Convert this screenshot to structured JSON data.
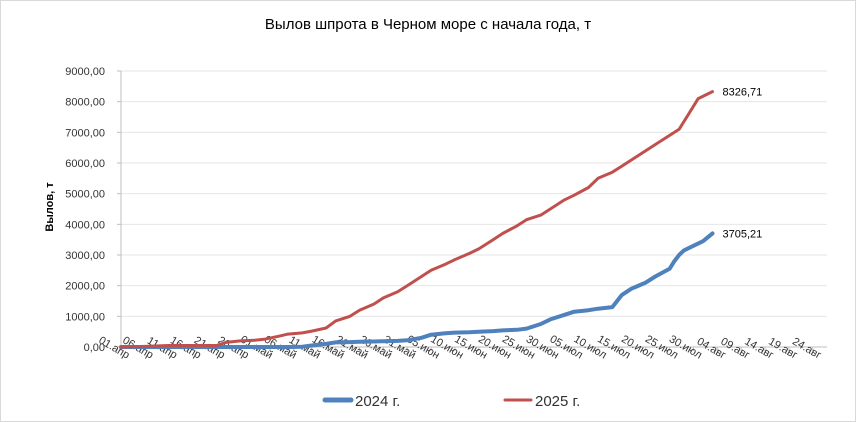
{
  "chart_data": {
    "type": "line",
    "title": "Вылов шпрота в Черном море с начала года, т",
    "xlabel": "",
    "ylabel": "Вылов, т",
    "ylim": [
      0,
      9000
    ],
    "yticks": [
      "0,00",
      "1000,00",
      "2000,00",
      "3000,00",
      "4000,00",
      "5000,00",
      "6000,00",
      "7000,00",
      "8000,00",
      "9000,00"
    ],
    "xticks": [
      "01.апр",
      "06.апр",
      "11.апр",
      "16.апр",
      "21.апр",
      "26.апр",
      "01.май",
      "06.май",
      "11.май",
      "16.май",
      "21.май",
      "26.май",
      "31.май",
      "05.июн",
      "10.июн",
      "15.июн",
      "20.июн",
      "25.июн",
      "30.июн",
      "05.июл",
      "10.июл",
      "15.июл",
      "20.июл",
      "25.июл",
      "30.июл",
      "04.авг",
      "09.авг",
      "14.авг",
      "19.авг",
      "24.авг"
    ],
    "legend_position": "bottom",
    "series": [
      {
        "name": "2024 г.",
        "color": "#4f81bd",
        "end_label": "3705,21",
        "x": [
          "01.апр",
          "06.апр",
          "11.апр",
          "16.апр",
          "21.апр",
          "26.апр",
          "01.май",
          "06.май",
          "09.май",
          "11.май",
          "14.май",
          "16.май",
          "19.май",
          "21.май",
          "24.май",
          "26.май",
          "29.май",
          "31.май",
          "03.июн",
          "05.июн",
          "08.июн",
          "10.июн",
          "13.июн",
          "15.июн",
          "18.июн",
          "20.июн",
          "23.июн",
          "25.июн",
          "28.июн",
          "30.июн",
          "03.июл",
          "05.июл",
          "08.июл",
          "10.июл",
          "13.июл",
          "15.июл",
          "17.июл",
          "20.июл",
          "22.июл",
          "25.июл",
          "26.июл",
          "27.июл",
          "28.июл",
          "30.июл",
          "01.авг",
          "03.авг"
        ],
        "values": [
          0,
          0,
          0,
          0,
          0,
          0,
          0,
          0,
          10,
          50,
          100,
          150,
          160,
          170,
          180,
          190,
          200,
          220,
          300,
          400,
          450,
          470,
          480,
          500,
          520,
          540,
          560,
          600,
          750,
          900,
          1050,
          1150,
          1200,
          1250,
          1300,
          1700,
          1900,
          2100,
          2300,
          2550,
          2800,
          3000,
          3150,
          3300,
          3450,
          3705.21
        ]
      },
      {
        "name": "2025 г.",
        "color": "#c0504d",
        "end_label": "8326,71",
        "x": [
          "01.апр",
          "06.апр",
          "11.апр",
          "16.апр",
          "21.апр",
          "23.апр",
          "26.апр",
          "29.апр",
          "01.май",
          "04.май",
          "06.май",
          "09.май",
          "11.май",
          "14.май",
          "16.май",
          "19.май",
          "21.май",
          "24.май",
          "26.май",
          "29.май",
          "31.май",
          "03.июн",
          "05.июн",
          "08.июн",
          "10.июн",
          "13.июн",
          "15.июн",
          "18.июн",
          "20.июн",
          "23.июн",
          "25.июн",
          "28.июн",
          "30.июн",
          "03.июл",
          "05.июл",
          "08.июл",
          "10.июл",
          "13.июл",
          "15.июл",
          "18.июл",
          "20.июл",
          "23.июл",
          "25.июл",
          "27.июл",
          "29.июл",
          "31.июл",
          "03.авг"
        ],
        "values": [
          0,
          20,
          50,
          50,
          50,
          150,
          200,
          220,
          250,
          350,
          420,
          460,
          520,
          620,
          850,
          1000,
          1200,
          1400,
          1600,
          1800,
          2000,
          2300,
          2500,
          2700,
          2850,
          3050,
          3200,
          3500,
          3700,
          3950,
          4150,
          4300,
          4500,
          4800,
          4950,
          5200,
          5500,
          5700,
          5900,
          6200,
          6400,
          6700,
          6900,
          7100,
          7600,
          8100,
          8326.71
        ]
      }
    ]
  }
}
